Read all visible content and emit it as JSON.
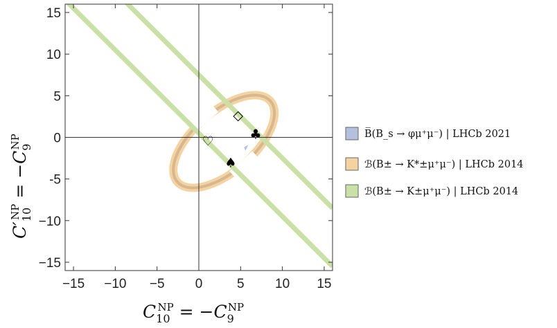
{
  "chart_data": {
    "type": "scatter",
    "xlabel_main": "C",
    "xlabel_sub": "10",
    "xlabel_sup": "NP",
    "xlabel_mid": " = −C",
    "xlabel_sub2": "9",
    "xlabel_sup2": "NP",
    "ylabel_main": "C′",
    "ylabel_sub": "10",
    "ylabel_sup": "NP",
    "ylabel_mid": " = −C",
    "ylabel_sub2": "9",
    "ylabel_sup2": "NP",
    "xlim": [
      -16,
      16
    ],
    "ylim": [
      -16,
      16
    ],
    "xticks": [
      "−15",
      "−10",
      "−5",
      "0",
      "5",
      "10",
      "15"
    ],
    "xtick_values": [
      -15,
      -10,
      -5,
      0,
      5,
      10,
      15
    ],
    "yticks": [
      "15",
      "10",
      "5",
      "0",
      "-5",
      "−10",
      "−15"
    ],
    "ytick_values": [
      15,
      10,
      5,
      0,
      -5,
      -10,
      -15
    ],
    "grid": false,
    "legend_position": "right",
    "legend": [
      {
        "label": "B̅(B_s → φμ⁺μ⁻) | LHCb 2021",
        "color": "#b4c0dc"
      },
      {
        "label": "ℬ(B± → K*±μ⁺μ⁻) | LHCb 2014",
        "color": "#f5d3a0"
      },
      {
        "label": "ℬ(B± → K±μ⁺μ⁻) | LHCb 2014",
        "color": "#cbe0a6"
      }
    ],
    "bands": [
      {
        "name": "K-band-upper",
        "x": [
          -16,
          16
        ],
        "y": [
          23.5,
          -8.5
        ],
        "color": "#cbe0a6"
      },
      {
        "name": "K-band-lower",
        "x": [
          -16,
          16
        ],
        "y": [
          16.5,
          -15.5
        ],
        "color": "#cbe0a6"
      }
    ],
    "ellipse": {
      "cx": 3.0,
      "cy": -0.5,
      "rx": 3.6,
      "ry": 7.4,
      "angle_deg": 49,
      "color": "#f5d3a0"
    },
    "markers": [
      {
        "name": "heart",
        "symbol": "♡",
        "x": 1.1,
        "y": -0.4
      },
      {
        "name": "diamond",
        "symbol": "◇",
        "x": 4.7,
        "y": 2.7
      },
      {
        "name": "club",
        "symbol": "♣",
        "x": 6.8,
        "y": 0.4
      },
      {
        "name": "spade",
        "symbol": "♠",
        "x": 3.8,
        "y": -3.0
      }
    ]
  }
}
